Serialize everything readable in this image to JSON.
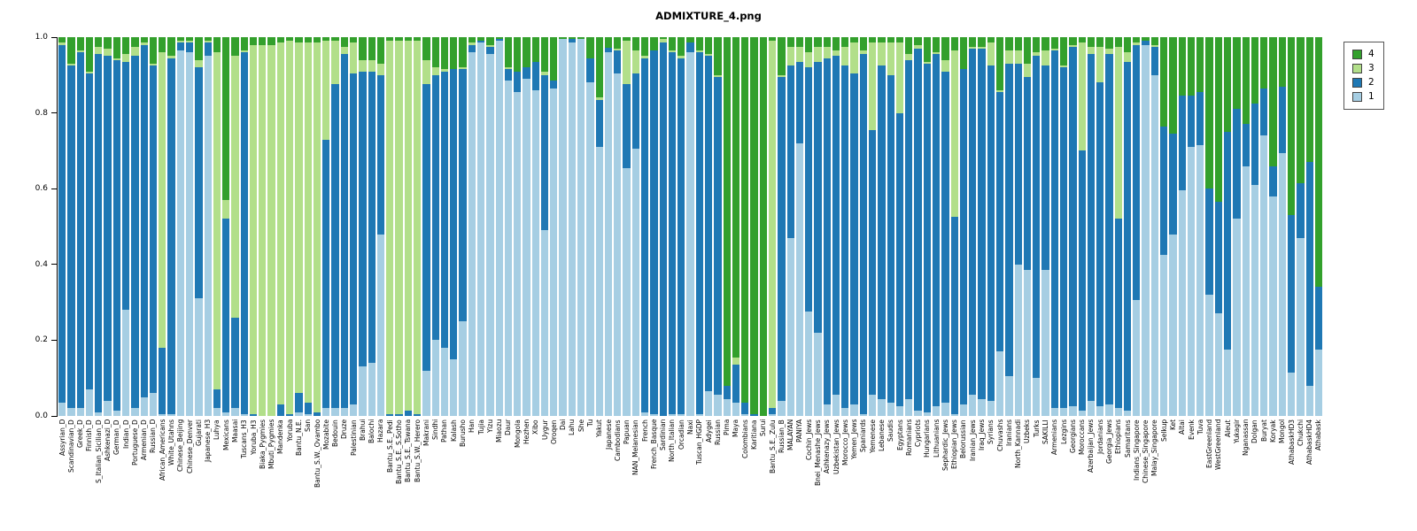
{
  "title": "ADMIXTURE_4.png",
  "legend": {
    "items": [
      {
        "label": "4",
        "color": "#33A02C"
      },
      {
        "label": "3",
        "color": "#B2DF8A"
      },
      {
        "label": "2",
        "color": "#1F78B4"
      },
      {
        "label": "1",
        "color": "#A6CEE3"
      }
    ]
  },
  "y_axis": {
    "tick_labels": [
      "0.0",
      "0.2",
      "0.4",
      "0.6",
      "0.8",
      "1.0"
    ]
  },
  "chart_data": {
    "type": "bar",
    "stacked": true,
    "title": "ADMIXTURE_4.png",
    "xlabel": "",
    "ylabel": "",
    "ylim": [
      0,
      1
    ],
    "yticks": [
      0.0,
      0.2,
      0.4,
      0.6,
      0.8,
      1.0
    ],
    "grid": false,
    "legend_position": "top-right",
    "components": [
      {
        "id": "1",
        "color": "#A6CEE3"
      },
      {
        "id": "2",
        "color": "#1F78B4"
      },
      {
        "id": "3",
        "color": "#B2DF8A"
      },
      {
        "id": "4",
        "color": "#33A02C"
      }
    ],
    "stack_order_bottom_to_top": [
      "1",
      "2",
      "3",
      "4"
    ],
    "populations": [
      {
        "n": "Assyrian_D",
        "v": [
          0.035,
          0.945,
          0.005,
          0.015
        ]
      },
      {
        "n": "Scandinavian_D",
        "v": [
          0.02,
          0.905,
          0.005,
          0.07
        ]
      },
      {
        "n": "Greek_D",
        "v": [
          0.02,
          0.94,
          0.005,
          0.035
        ]
      },
      {
        "n": "Finnish_D",
        "v": [
          0.07,
          0.835,
          0.005,
          0.09
        ]
      },
      {
        "n": "S_Italian_Sicilian_D",
        "v": [
          0.01,
          0.945,
          0.02,
          0.025
        ]
      },
      {
        "n": "Ashkenazi_D",
        "v": [
          0.04,
          0.91,
          0.02,
          0.03
        ]
      },
      {
        "n": "German_D",
        "v": [
          0.015,
          0.925,
          0.005,
          0.055
        ]
      },
      {
        "n": "Indian_D",
        "v": [
          0.28,
          0.655,
          0.02,
          0.045
        ]
      },
      {
        "n": "Portuguese_D",
        "v": [
          0.02,
          0.93,
          0.025,
          0.025
        ]
      },
      {
        "n": "Armenian_D",
        "v": [
          0.05,
          0.93,
          0.005,
          0.015
        ]
      },
      {
        "n": "Russian_D",
        "v": [
          0.06,
          0.865,
          0.005,
          0.07
        ]
      },
      {
        "n": "African_Americans",
        "v": [
          0.005,
          0.175,
          0.78,
          0.04
        ]
      },
      {
        "n": "White_Utahns",
        "v": [
          0.005,
          0.94,
          0.005,
          0.05
        ]
      },
      {
        "n": "Chinese_Beijing",
        "v": [
          0.965,
          0.02,
          0.005,
          0.01
        ]
      },
      {
        "n": "Chinese_Denver",
        "v": [
          0.96,
          0.025,
          0.005,
          0.01
        ]
      },
      {
        "n": "Gujarati",
        "v": [
          0.31,
          0.61,
          0.02,
          0.06
        ]
      },
      {
        "n": "Japanese_H3",
        "v": [
          0.95,
          0.035,
          0.005,
          0.01
        ]
      },
      {
        "n": "Luhya",
        "v": [
          0.02,
          0.05,
          0.89,
          0.04
        ]
      },
      {
        "n": "Mexicans",
        "v": [
          0.01,
          0.51,
          0.05,
          0.43
        ]
      },
      {
        "n": "Maasai",
        "v": [
          0.02,
          0.24,
          0.69,
          0.05
        ]
      },
      {
        "n": "Tuscans_H3",
        "v": [
          0.005,
          0.955,
          0.005,
          0.035
        ]
      },
      {
        "n": "Yoruba_H3",
        "v": [
          0.0,
          0.005,
          0.975,
          0.02
        ]
      },
      {
        "n": "Biaka_Pygmies",
        "v": [
          0.0,
          0.0,
          0.98,
          0.02
        ]
      },
      {
        "n": "Mbuti_Pygmies",
        "v": [
          0.0,
          0.0,
          0.98,
          0.02
        ]
      },
      {
        "n": "Mandenka",
        "v": [
          0.0,
          0.03,
          0.955,
          0.015
        ]
      },
      {
        "n": "Yoruba",
        "v": [
          0.0,
          0.005,
          0.985,
          0.01
        ]
      },
      {
        "n": "Bantu_N.E.",
        "v": [
          0.01,
          0.05,
          0.925,
          0.015
        ]
      },
      {
        "n": "San",
        "v": [
          0.005,
          0.03,
          0.95,
          0.015
        ]
      },
      {
        "n": "Bantu_S.W._Ovambo",
        "v": [
          0.0,
          0.01,
          0.975,
          0.015
        ]
      },
      {
        "n": "Mozabite",
        "v": [
          0.02,
          0.71,
          0.26,
          0.01
        ]
      },
      {
        "n": "Bedouin",
        "v": [
          0.02,
          0.855,
          0.115,
          0.01
        ]
      },
      {
        "n": "Druze",
        "v": [
          0.02,
          0.935,
          0.02,
          0.025
        ]
      },
      {
        "n": "Palestinian",
        "v": [
          0.03,
          0.875,
          0.08,
          0.015
        ]
      },
      {
        "n": "Brahui",
        "v": [
          0.13,
          0.78,
          0.03,
          0.06
        ]
      },
      {
        "n": "Balochi",
        "v": [
          0.14,
          0.77,
          0.03,
          0.06
        ]
      },
      {
        "n": "Hazara",
        "v": [
          0.48,
          0.42,
          0.03,
          0.07
        ]
      },
      {
        "n": "Bantu_S.E._Pedi",
        "v": [
          0.0,
          0.005,
          0.985,
          0.01
        ]
      },
      {
        "n": "Bantu_S.E._S.Sotho",
        "v": [
          0.0,
          0.005,
          0.985,
          0.01
        ]
      },
      {
        "n": "Bantu_S.E._Tswana",
        "v": [
          0.0,
          0.015,
          0.975,
          0.01
        ]
      },
      {
        "n": "Bantu_S.W._Herero",
        "v": [
          0.0,
          0.005,
          0.985,
          0.01
        ]
      },
      {
        "n": "Makrani",
        "v": [
          0.12,
          0.755,
          0.065,
          0.06
        ]
      },
      {
        "n": "Sindhi",
        "v": [
          0.2,
          0.7,
          0.02,
          0.08
        ]
      },
      {
        "n": "Pathan",
        "v": [
          0.18,
          0.73,
          0.005,
          0.085
        ]
      },
      {
        "n": "Kalash",
        "v": [
          0.15,
          0.765,
          0.0,
          0.085
        ]
      },
      {
        "n": "Burusho",
        "v": [
          0.25,
          0.665,
          0.005,
          0.08
        ]
      },
      {
        "n": "Han",
        "v": [
          0.96,
          0.02,
          0.005,
          0.015
        ]
      },
      {
        "n": "Tujia",
        "v": [
          0.985,
          0.005,
          0.0,
          0.01
        ]
      },
      {
        "n": "Yizu",
        "v": [
          0.955,
          0.02,
          0.005,
          0.02
        ]
      },
      {
        "n": "Miaozu",
        "v": [
          0.99,
          0.005,
          0.0,
          0.005
        ]
      },
      {
        "n": "Daur",
        "v": [
          0.885,
          0.03,
          0.005,
          0.08
        ]
      },
      {
        "n": "Mongola",
        "v": [
          0.855,
          0.055,
          0.0,
          0.09
        ]
      },
      {
        "n": "Hezhen",
        "v": [
          0.89,
          0.03,
          0.0,
          0.08
        ]
      },
      {
        "n": "Xibo",
        "v": [
          0.86,
          0.075,
          0.0,
          0.065
        ]
      },
      {
        "n": "Uygur",
        "v": [
          0.49,
          0.41,
          0.01,
          0.09
        ]
      },
      {
        "n": "Oroqen",
        "v": [
          0.865,
          0.02,
          0.0,
          0.115
        ]
      },
      {
        "n": "Dai",
        "v": [
          0.995,
          0.0,
          0.0,
          0.005
        ]
      },
      {
        "n": "Lahu",
        "v": [
          0.985,
          0.01,
          0.0,
          0.005
        ]
      },
      {
        "n": "She",
        "v": [
          0.995,
          0.0,
          0.0,
          0.005
        ]
      },
      {
        "n": "Tu",
        "v": [
          0.88,
          0.065,
          0.0,
          0.055
        ]
      },
      {
        "n": "Yakut",
        "v": [
          0.71,
          0.125,
          0.005,
          0.16
        ]
      },
      {
        "n": "Japanese",
        "v": [
          0.96,
          0.012,
          0.0,
          0.028
        ]
      },
      {
        "n": "Cambodians",
        "v": [
          0.905,
          0.06,
          0.005,
          0.03
        ]
      },
      {
        "n": "Papuan",
        "v": [
          0.655,
          0.22,
          0.115,
          0.01
        ]
      },
      {
        "n": "NAN_Melanesian",
        "v": [
          0.705,
          0.2,
          0.06,
          0.035
        ]
      },
      {
        "n": "French",
        "v": [
          0.01,
          0.935,
          0.005,
          0.05
        ]
      },
      {
        "n": "French_Basque",
        "v": [
          0.005,
          0.96,
          0.0,
          0.035
        ]
      },
      {
        "n": "Sardinian",
        "v": [
          0.0,
          0.985,
          0.01,
          0.005
        ]
      },
      {
        "n": "North_Italian",
        "v": [
          0.005,
          0.955,
          0.005,
          0.035
        ]
      },
      {
        "n": "Orcadian",
        "v": [
          0.005,
          0.94,
          0.005,
          0.05
        ]
      },
      {
        "n": "Naxi",
        "v": [
          0.96,
          0.025,
          0.0,
          0.015
        ]
      },
      {
        "n": "Tuscan_HGDP",
        "v": [
          0.005,
          0.955,
          0.005,
          0.035
        ]
      },
      {
        "n": "Adygei",
        "v": [
          0.065,
          0.885,
          0.005,
          0.045
        ]
      },
      {
        "n": "Russian",
        "v": [
          0.055,
          0.84,
          0.005,
          0.1
        ]
      },
      {
        "n": "Pima",
        "v": [
          0.045,
          0.035,
          0.0,
          0.92
        ]
      },
      {
        "n": "Maya",
        "v": [
          0.035,
          0.1,
          0.02,
          0.845
        ]
      },
      {
        "n": "Colombians",
        "v": [
          0.005,
          0.03,
          0.0,
          0.965
        ]
      },
      {
        "n": "Karitiana",
        "v": [
          0.0,
          0.005,
          0.0,
          0.995
        ]
      },
      {
        "n": "Surui",
        "v": [
          0.0,
          0.0,
          0.0,
          1.0
        ]
      },
      {
        "n": "Bantu_S.E._Zulu",
        "v": [
          0.005,
          0.015,
          0.97,
          0.01
        ]
      },
      {
        "n": "Russian_B",
        "v": [
          0.04,
          0.855,
          0.005,
          0.1
        ]
      },
      {
        "n": "MALAYAN",
        "v": [
          0.47,
          0.455,
          0.05,
          0.025
        ]
      },
      {
        "n": "PANIYA",
        "v": [
          0.72,
          0.215,
          0.04,
          0.025
        ]
      },
      {
        "n": "Cochin_Jews",
        "v": [
          0.275,
          0.645,
          0.04,
          0.04
        ]
      },
      {
        "n": "Bnei_Menashe_Jews",
        "v": [
          0.22,
          0.715,
          0.04,
          0.025
        ]
      },
      {
        "n": "Ashkenazy_Jews",
        "v": [
          0.03,
          0.915,
          0.03,
          0.025
        ]
      },
      {
        "n": "Uzbekistan_Jews",
        "v": [
          0.055,
          0.895,
          0.015,
          0.035
        ]
      },
      {
        "n": "Morocco_Jews",
        "v": [
          0.02,
          0.905,
          0.05,
          0.025
        ]
      },
      {
        "n": "Yemen_Jews",
        "v": [
          0.03,
          0.875,
          0.08,
          0.015
        ]
      },
      {
        "n": "Spaniards",
        "v": [
          0.005,
          0.95,
          0.01,
          0.035
        ]
      },
      {
        "n": "Yemenese",
        "v": [
          0.055,
          0.7,
          0.23,
          0.015
        ]
      },
      {
        "n": "Lebanese",
        "v": [
          0.045,
          0.88,
          0.06,
          0.015
        ]
      },
      {
        "n": "Saudis",
        "v": [
          0.035,
          0.865,
          0.085,
          0.015
        ]
      },
      {
        "n": "Egyptans",
        "v": [
          0.025,
          0.775,
          0.185,
          0.015
        ]
      },
      {
        "n": "Romanians",
        "v": [
          0.045,
          0.895,
          0.015,
          0.045
        ]
      },
      {
        "n": "Cypriots",
        "v": [
          0.015,
          0.955,
          0.01,
          0.02
        ]
      },
      {
        "n": "Hungarians",
        "v": [
          0.01,
          0.92,
          0.005,
          0.065
        ]
      },
      {
        "n": "Lithuanians",
        "v": [
          0.025,
          0.93,
          0.005,
          0.04
        ]
      },
      {
        "n": "Sephardic_Jews",
        "v": [
          0.035,
          0.875,
          0.03,
          0.06
        ]
      },
      {
        "n": "Ethiopian_Jews",
        "v": [
          0.005,
          0.52,
          0.44,
          0.035
        ]
      },
      {
        "n": "Belorussian",
        "v": [
          0.03,
          0.885,
          0.0,
          0.085
        ]
      },
      {
        "n": "Iranian_Jews",
        "v": [
          0.055,
          0.915,
          0.005,
          0.025
        ]
      },
      {
        "n": "Iraq_Jews",
        "v": [
          0.045,
          0.925,
          0.005,
          0.025
        ]
      },
      {
        "n": "Syrians",
        "v": [
          0.04,
          0.885,
          0.06,
          0.015
        ]
      },
      {
        "n": "Chuvashs",
        "v": [
          0.17,
          0.685,
          0.005,
          0.14
        ]
      },
      {
        "n": "Iranians",
        "v": [
          0.105,
          0.825,
          0.035,
          0.035
        ]
      },
      {
        "n": "North_Kannadi",
        "v": [
          0.4,
          0.53,
          0.035,
          0.035
        ]
      },
      {
        "n": "Uzbeks",
        "v": [
          0.385,
          0.51,
          0.035,
          0.07
        ]
      },
      {
        "n": "Turks",
        "v": [
          0.1,
          0.85,
          0.01,
          0.04
        ]
      },
      {
        "n": "SAKILLI",
        "v": [
          0.385,
          0.54,
          0.04,
          0.035
        ]
      },
      {
        "n": "Armenians",
        "v": [
          0.02,
          0.945,
          0.005,
          0.03
        ]
      },
      {
        "n": "Lezgins",
        "v": [
          0.02,
          0.9,
          0.005,
          0.075
        ]
      },
      {
        "n": "Georgians",
        "v": [
          0.025,
          0.95,
          0.005,
          0.02
        ]
      },
      {
        "n": "Moroccans",
        "v": [
          0.015,
          0.685,
          0.285,
          0.015
        ]
      },
      {
        "n": "Azerbaijan_Jews",
        "v": [
          0.04,
          0.915,
          0.02,
          0.025
        ]
      },
      {
        "n": "Jordanians",
        "v": [
          0.025,
          0.855,
          0.095,
          0.025
        ]
      },
      {
        "n": "Georgia_Jews",
        "v": [
          0.03,
          0.925,
          0.015,
          0.03
        ]
      },
      {
        "n": "Ethiopians",
        "v": [
          0.02,
          0.5,
          0.455,
          0.025
        ]
      },
      {
        "n": "Samaritans",
        "v": [
          0.015,
          0.92,
          0.025,
          0.04
        ]
      },
      {
        "n": "Indians_Singapore",
        "v": [
          0.305,
          0.675,
          0.005,
          0.015
        ]
      },
      {
        "n": "Chinese_Singapore",
        "v": [
          0.98,
          0.01,
          0.0,
          0.01
        ]
      },
      {
        "n": "Malay_Singapore",
        "v": [
          0.9,
          0.075,
          0.005,
          0.02
        ]
      },
      {
        "n": "Selkup",
        "v": [
          0.425,
          0.34,
          0.0,
          0.235
        ]
      },
      {
        "n": "Ket",
        "v": [
          0.48,
          0.265,
          0.0,
          0.255
        ]
      },
      {
        "n": "Altai",
        "v": [
          0.595,
          0.25,
          0.0,
          0.155
        ]
      },
      {
        "n": "Evenk",
        "v": [
          0.71,
          0.135,
          0.0,
          0.155
        ]
      },
      {
        "n": "Tuva",
        "v": [
          0.715,
          0.14,
          0.0,
          0.145
        ]
      },
      {
        "n": "EastGreenland",
        "v": [
          0.32,
          0.28,
          0.0,
          0.4
        ]
      },
      {
        "n": "WestGreenland",
        "v": [
          0.27,
          0.295,
          0.0,
          0.435
        ]
      },
      {
        "n": "Aleut",
        "v": [
          0.175,
          0.575,
          0.0,
          0.25
        ]
      },
      {
        "n": "Yukagir",
        "v": [
          0.52,
          0.29,
          0.0,
          0.19
        ]
      },
      {
        "n": "Nganassan",
        "v": [
          0.66,
          0.11,
          0.0,
          0.23
        ]
      },
      {
        "n": "Dolgan",
        "v": [
          0.61,
          0.215,
          0.0,
          0.175
        ]
      },
      {
        "n": "Buryat",
        "v": [
          0.74,
          0.125,
          0.0,
          0.135
        ]
      },
      {
        "n": "Koryak",
        "v": [
          0.58,
          0.08,
          0.0,
          0.34
        ]
      },
      {
        "n": "Mongol",
        "v": [
          0.695,
          0.175,
          0.0,
          0.13
        ]
      },
      {
        "n": "AthabaskHD3",
        "v": [
          0.115,
          0.415,
          0.0,
          0.47
        ]
      },
      {
        "n": "Chukchi",
        "v": [
          0.47,
          0.145,
          0.0,
          0.385
        ]
      },
      {
        "n": "AthabaskHD4",
        "v": [
          0.08,
          0.59,
          0.0,
          0.33
        ]
      },
      {
        "n": "Athabask",
        "v": [
          0.175,
          0.165,
          0.0,
          0.66
        ]
      }
    ]
  }
}
